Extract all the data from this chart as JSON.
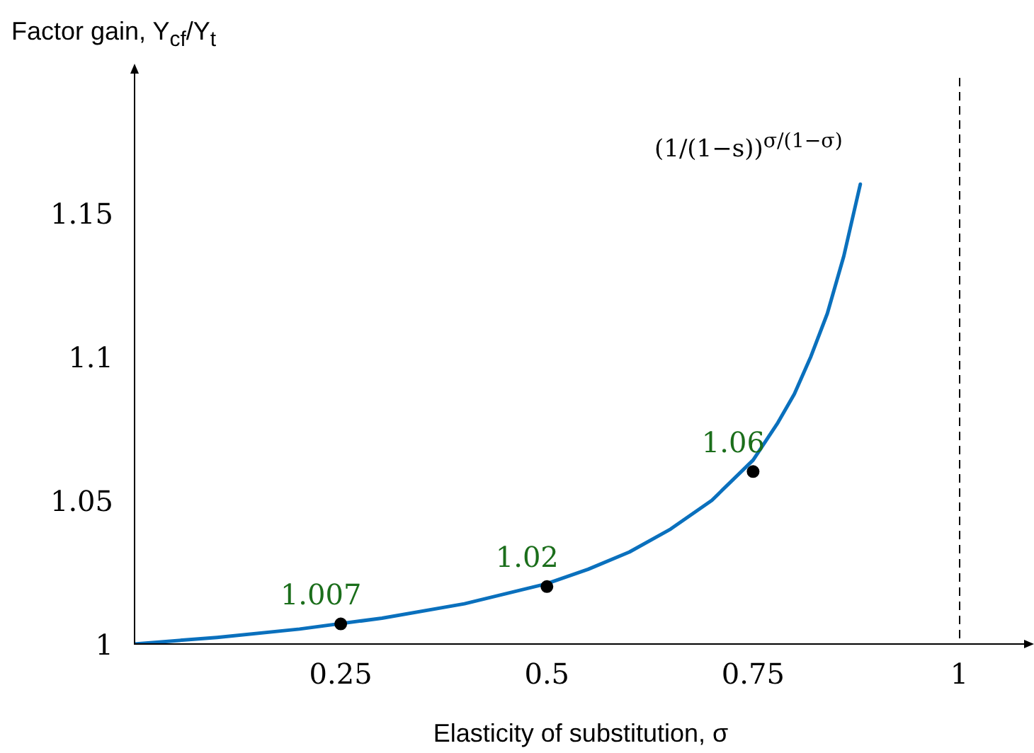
{
  "chart_data": {
    "type": "line",
    "xlabel": "Elasticity of substitution, σ",
    "ylabel": "Factor gain, Y$_{cf}$/Y$_{t}$",
    "xlim": [
      0,
      1.082
    ],
    "xticks": [
      0.25,
      0.5,
      0.75,
      1
    ],
    "ylim": [
      1,
      1.197
    ],
    "yticks": [
      1,
      1.05,
      1.1,
      1.15
    ],
    "series": [
      {
        "type": "line",
        "color": "#0a70bd",
        "marker": "none",
        "x": [
          0,
          0.1,
          0.2,
          0.3,
          0.4,
          0.5,
          0.55,
          0.6,
          0.65,
          0.7,
          0.75,
          0.78,
          0.8,
          0.82,
          0.84,
          0.86,
          0.88
        ],
        "values": [
          1,
          1.0023,
          1.0052,
          1.009,
          1.014,
          1.021,
          1.026,
          1.032,
          1.04,
          1.05,
          1.064,
          1.077,
          1.087,
          1.1,
          1.115,
          1.135,
          1.16
        ]
      },
      {
        "type": "scatter",
        "marker": "circle",
        "color": "#000000",
        "x": [
          0.25,
          0.5,
          0.75
        ],
        "values": [
          1.007,
          1.02,
          1.06
        ],
        "value_labels": [
          "1.007",
          "1.02",
          "1.06"
        ]
      }
    ],
    "ref_lines": [
      {
        "axis": "x",
        "value": 1,
        "color": "#000000",
        "line_style": "dashed"
      }
    ],
    "annotations": [
      "(1/(1−s))$^{σ/(1−σ)}$"
    ],
    "grid": false,
    "legend": false
  }
}
